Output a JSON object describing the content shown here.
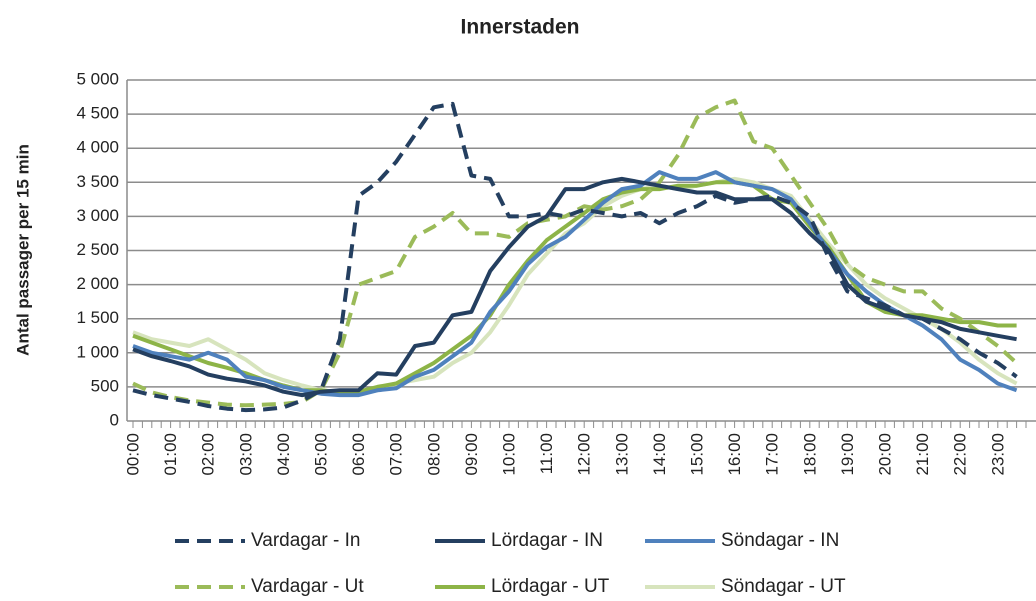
{
  "chart_data": {
    "type": "line",
    "title": "Innerstaden",
    "y_label": "Antal passager per 15 min",
    "categories": [
      "00:00",
      null,
      "01:00",
      null,
      "02:00",
      null,
      "03:00",
      null,
      "04:00",
      null,
      "05:00",
      null,
      "06:00",
      null,
      "07:00",
      null,
      "08:00",
      null,
      "09:00",
      null,
      "10:00",
      null,
      "11:00",
      null,
      "12:00",
      null,
      "13:00",
      null,
      "14:00",
      null,
      "15:00",
      null,
      "16:00",
      null,
      "17:00",
      null,
      "18:00",
      null,
      "19:00",
      null,
      "20:00",
      null,
      "21:00",
      null,
      "22:00",
      null,
      "23:00",
      null
    ],
    "ylim": [
      0,
      5000
    ],
    "yticks": [
      0,
      500,
      {
        "value": 1000,
        "label": "1 000"
      },
      {
        "value": 1500,
        "label": "1 500"
      },
      {
        "value": 2000,
        "label": "2 000"
      },
      {
        "value": 2500,
        "label": "2 500"
      },
      {
        "value": 3000,
        "label": "3 000"
      },
      {
        "value": 3500,
        "label": "3 500"
      },
      {
        "value": 4000,
        "label": "4 000"
      },
      {
        "value": 4500,
        "label": "4 500"
      },
      {
        "value": 5000,
        "label": "5 000"
      }
    ],
    "grid": true,
    "legend": "bottom",
    "series": [
      {
        "name": "Vardagar - In",
        "color": "#243f60",
        "dashed": true,
        "values": [
          450,
          380,
          330,
          280,
          220,
          180,
          160,
          170,
          200,
          300,
          450,
          1200,
          3300,
          3500,
          3800,
          4200,
          4600,
          4650,
          3600,
          3550,
          3000,
          3000,
          3050,
          3000,
          3100,
          3050,
          3000,
          3050,
          2900,
          3050,
          3150,
          3300,
          3200,
          3250,
          3300,
          3200,
          3000,
          2400,
          1900,
          1800,
          1700,
          1550,
          1500,
          1350,
          1200,
          1000,
          850,
          650
        ]
      },
      {
        "name": "Lördagar - IN",
        "color": "#243f60",
        "dashed": false,
        "values": [
          1050,
          950,
          880,
          800,
          680,
          620,
          580,
          520,
          430,
          380,
          430,
          450,
          450,
          700,
          680,
          1100,
          1150,
          1550,
          1600,
          2200,
          2550,
          2850,
          3000,
          3400,
          3400,
          3500,
          3550,
          3500,
          3450,
          3400,
          3350,
          3350,
          3250,
          3250,
          3250,
          3050,
          2750,
          2500,
          2000,
          1750,
          1650,
          1550,
          1500,
          1450,
          1350,
          1300,
          1250,
          1200
        ]
      },
      {
        "name": "Söndagar - IN",
        "color": "#4f81bd",
        "dashed": false,
        "values": [
          1100,
          1000,
          950,
          900,
          1000,
          900,
          650,
          600,
          500,
          450,
          400,
          380,
          380,
          450,
          480,
          650,
          750,
          950,
          1150,
          1600,
          1900,
          2300,
          2550,
          2700,
          2950,
          3200,
          3400,
          3450,
          3650,
          3550,
          3550,
          3650,
          3500,
          3450,
          3400,
          3250,
          2900,
          2500,
          2150,
          1900,
          1700,
          1550,
          1400,
          1200,
          900,
          750,
          550,
          450
        ]
      },
      {
        "name": "Vardagar - Ut",
        "color": "#9bbb59",
        "dashed": true,
        "values": [
          550,
          420,
          350,
          300,
          270,
          240,
          230,
          240,
          250,
          280,
          450,
          1000,
          2000,
          2100,
          2200,
          2700,
          2850,
          3050,
          2750,
          2750,
          2700,
          2900,
          2950,
          3000,
          3150,
          3100,
          3150,
          3250,
          3500,
          3900,
          4450,
          4600,
          4700,
          4100,
          4000,
          3600,
          3200,
          2800,
          2300,
          2100,
          2000,
          1900,
          1900,
          1650,
          1500,
          1300,
          1100,
          850
        ]
      },
      {
        "name": "Lördagar - UT",
        "color": "#8db447",
        "dashed": false,
        "values": [
          1250,
          1150,
          1050,
          950,
          850,
          780,
          700,
          600,
          520,
          450,
          450,
          420,
          430,
          500,
          550,
          700,
          850,
          1050,
          1250,
          1550,
          2000,
          2350,
          2650,
          2850,
          3050,
          3250,
          3350,
          3400,
          3400,
          3450,
          3450,
          3500,
          3500,
          3450,
          3250,
          3200,
          2850,
          2550,
          2150,
          1750,
          1600,
          1550,
          1550,
          1500,
          1450,
          1450,
          1400,
          1400
        ]
      },
      {
        "name": "Söndagar - UT",
        "color": "#d7e4bd",
        "dashed": false,
        "values": [
          1300,
          1200,
          1150,
          1100,
          1200,
          1050,
          900,
          700,
          600,
          520,
          450,
          420,
          400,
          450,
          550,
          600,
          650,
          850,
          1000,
          1300,
          1700,
          2150,
          2450,
          2750,
          2900,
          3150,
          3300,
          3400,
          3450,
          3400,
          3450,
          3500,
          3550,
          3500,
          3400,
          3300,
          2950,
          2600,
          2300,
          2000,
          1800,
          1650,
          1500,
          1350,
          1150,
          900,
          700,
          550
        ]
      }
    ]
  }
}
